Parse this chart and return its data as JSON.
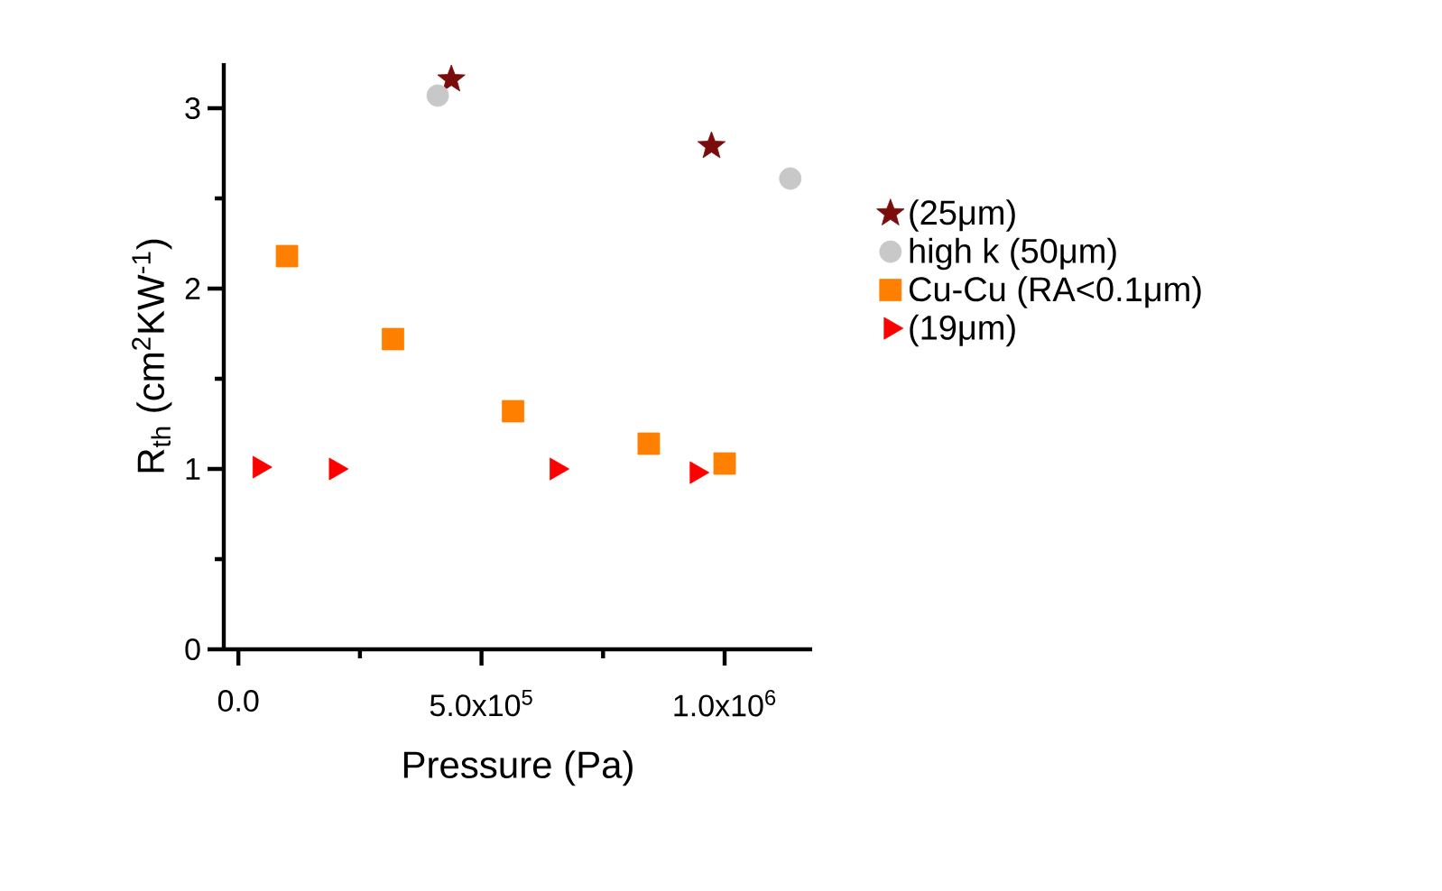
{
  "chart_data": {
    "type": "scatter",
    "xlabel": "Pressure (Pa)",
    "ylabel": "R$_{th}$ (cm$^{2}$KW$^{-1}$)",
    "xlim": [
      -30000,
      1180000
    ],
    "ylim": [
      0,
      3.25
    ],
    "xticks": [
      {
        "value": 0,
        "label": "0.0"
      },
      {
        "value": 250000,
        "label": null
      },
      {
        "value": 500000,
        "label": "5.0x10$^{5}$"
      },
      {
        "value": 750000,
        "label": null
      },
      {
        "value": 1000000,
        "label": "1.0x10$^{6}$"
      }
    ],
    "yticks": [
      0,
      {
        "value": 0.5,
        "label": null
      },
      1,
      {
        "value": 1.5,
        "label": null
      },
      2,
      {
        "value": 2.5,
        "label": null
      },
      3
    ],
    "grid": false,
    "legend": "right",
    "series": [
      {
        "name": "(25μm)",
        "color": "#7b0c0c",
        "marker": "star",
        "x": [
          438000,
          973000
        ],
        "values": [
          3.16,
          2.79
        ]
      },
      {
        "name": "high k (50μm)",
        "color": "#c8c8c8",
        "marker": "circle",
        "x": [
          410000,
          1135000
        ],
        "values": [
          3.07,
          2.61
        ]
      },
      {
        "name": "Cu-Cu (RA<0.1μm)",
        "color": "#ff8000",
        "marker": "square",
        "x": [
          100000,
          318000,
          565000,
          844000,
          1000000
        ],
        "values": [
          2.18,
          1.72,
          1.32,
          1.14,
          1.03
        ]
      },
      {
        "name": "(19μm)",
        "color": "#ff0000",
        "marker": "triangle",
        "x": [
          43000,
          200000,
          654000,
          942000
        ],
        "values": [
          1.01,
          1.0,
          1.0,
          0.98
        ]
      }
    ]
  }
}
